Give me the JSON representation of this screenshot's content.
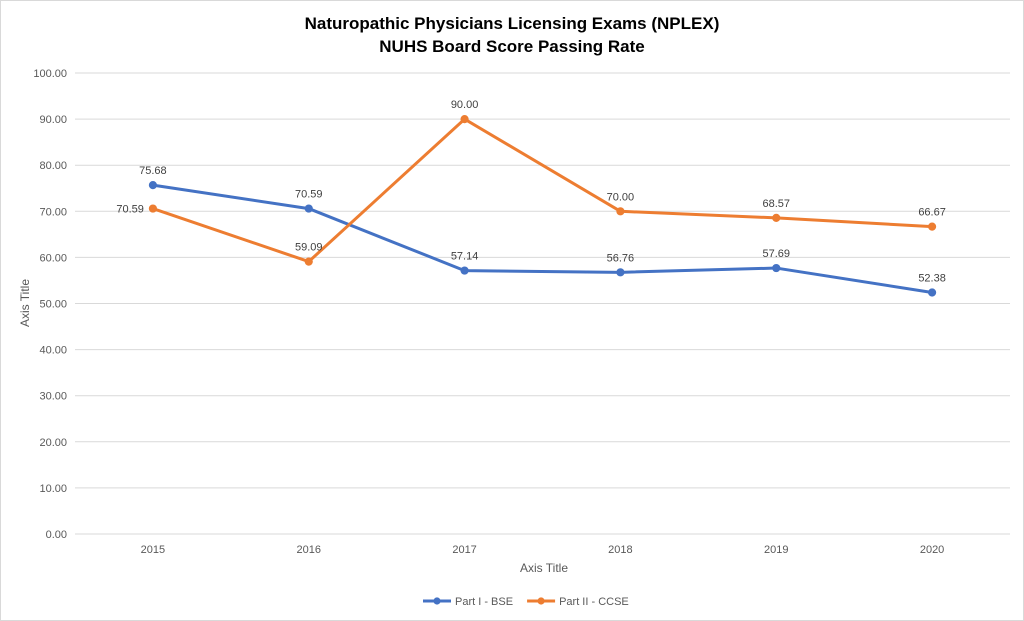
{
  "chart_data": {
    "type": "line",
    "title": [
      "Naturopathic Physicians Licensing Exams (NPLEX)",
      "NUHS Board Score Passing Rate"
    ],
    "xlabel": "Axis Title",
    "ylabel": "Axis Title",
    "categories": [
      "2015",
      "2016",
      "2017",
      "2018",
      "2019",
      "2020"
    ],
    "ylim": [
      0,
      100
    ],
    "yticks": [
      0,
      10,
      20,
      30,
      40,
      50,
      60,
      70,
      80,
      90,
      100
    ],
    "ytick_labels": [
      "0.00",
      "10.00",
      "20.00",
      "30.00",
      "40.00",
      "50.00",
      "60.00",
      "70.00",
      "80.00",
      "90.00",
      "100.00"
    ],
    "grid": true,
    "legend_position": "bottom",
    "series": [
      {
        "name": "Part I - BSE",
        "color": "#4472C4",
        "values": [
          75.68,
          70.59,
          57.14,
          56.76,
          57.69,
          52.38
        ],
        "labels": [
          "75.68",
          "70.59",
          "57.14",
          "56.76",
          "57.69",
          "52.38"
        ]
      },
      {
        "name": "Part II - CCSE",
        "color": "#ED7D31",
        "values": [
          70.59,
          59.09,
          90.0,
          70.0,
          68.57,
          66.67
        ],
        "labels": [
          "70.59",
          "59.09",
          "90.00",
          "70.00",
          "68.57",
          "66.67"
        ]
      }
    ]
  }
}
